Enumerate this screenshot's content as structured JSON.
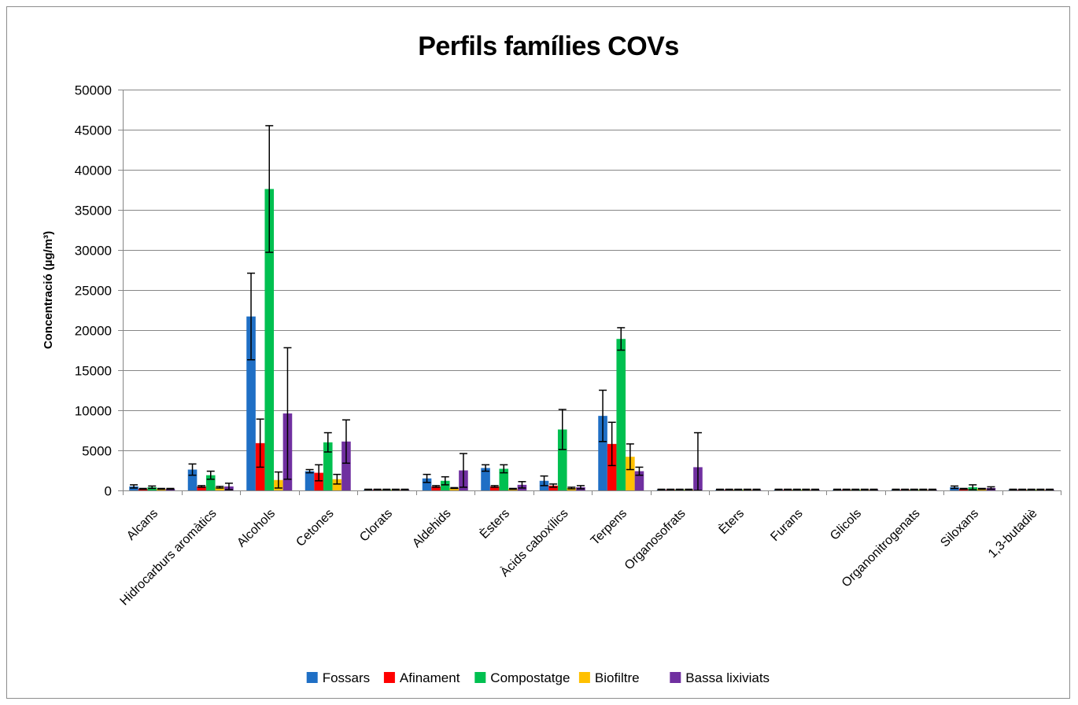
{
  "chart_data": {
    "type": "bar",
    "title": "Perfils famílies COVs",
    "xlabel": "",
    "ylabel": "Concentració  (µg/m³)",
    "ylim": [
      0,
      50000
    ],
    "yticks": [
      0,
      5000,
      10000,
      15000,
      20000,
      25000,
      30000,
      35000,
      40000,
      45000,
      50000
    ],
    "grid": true,
    "legend_position": "bottom",
    "categories": [
      "Alcans",
      "Hidrocarburs aromàtics",
      "Alcohols",
      "Cetones",
      "Clorats",
      "Aldehids",
      "Èsters",
      "Àcids caboxílics",
      "Terpens",
      "Organosofrats",
      "Èters",
      "Furans",
      "Glicols",
      "Organonitrogenats",
      "Siloxans",
      "1,3-butadiè"
    ],
    "series": [
      {
        "name": "Fossars",
        "color": "#1F6FC5",
        "values": [
          500,
          2600,
          21700,
          2400,
          100,
          1500,
          2800,
          1200,
          9300,
          100,
          100,
          100,
          100,
          100,
          400,
          100
        ],
        "errors": [
          200,
          700,
          5400,
          200,
          50,
          500,
          400,
          600,
          3200,
          50,
          50,
          50,
          50,
          50,
          150,
          50
        ]
      },
      {
        "name": "Afinament",
        "color": "#FF0000",
        "values": [
          200,
          500,
          5900,
          2200,
          100,
          500,
          500,
          600,
          5800,
          100,
          100,
          100,
          100,
          100,
          200,
          100
        ],
        "errors": [
          50,
          100,
          3000,
          1000,
          50,
          100,
          100,
          200,
          2700,
          50,
          50,
          50,
          50,
          50,
          50,
          50
        ]
      },
      {
        "name": "Compostatge",
        "color": "#00C050",
        "values": [
          400,
          1900,
          37600,
          6000,
          100,
          1200,
          2700,
          7600,
          18900,
          100,
          100,
          100,
          100,
          100,
          400,
          100
        ],
        "errors": [
          150,
          500,
          7900,
          1200,
          50,
          500,
          500,
          2500,
          1400,
          50,
          50,
          50,
          50,
          50,
          300,
          50
        ]
      },
      {
        "name": "Biofiltre",
        "color": "#FFC000",
        "values": [
          200,
          400,
          1300,
          1400,
          100,
          300,
          200,
          300,
          4200,
          100,
          100,
          100,
          100,
          100,
          200,
          100
        ],
        "errors": [
          50,
          100,
          1000,
          600,
          50,
          50,
          50,
          100,
          1600,
          50,
          50,
          50,
          50,
          50,
          50,
          50
        ]
      },
      {
        "name": "Bassa lixiviats",
        "color": "#7030A0",
        "values": [
          200,
          500,
          9600,
          6100,
          100,
          2500,
          700,
          400,
          2400,
          2900,
          100,
          100,
          100,
          100,
          300,
          100
        ],
        "errors": [
          50,
          400,
          8200,
          2700,
          50,
          2100,
          400,
          200,
          500,
          4300,
          50,
          50,
          50,
          50,
          150,
          50
        ]
      }
    ]
  }
}
